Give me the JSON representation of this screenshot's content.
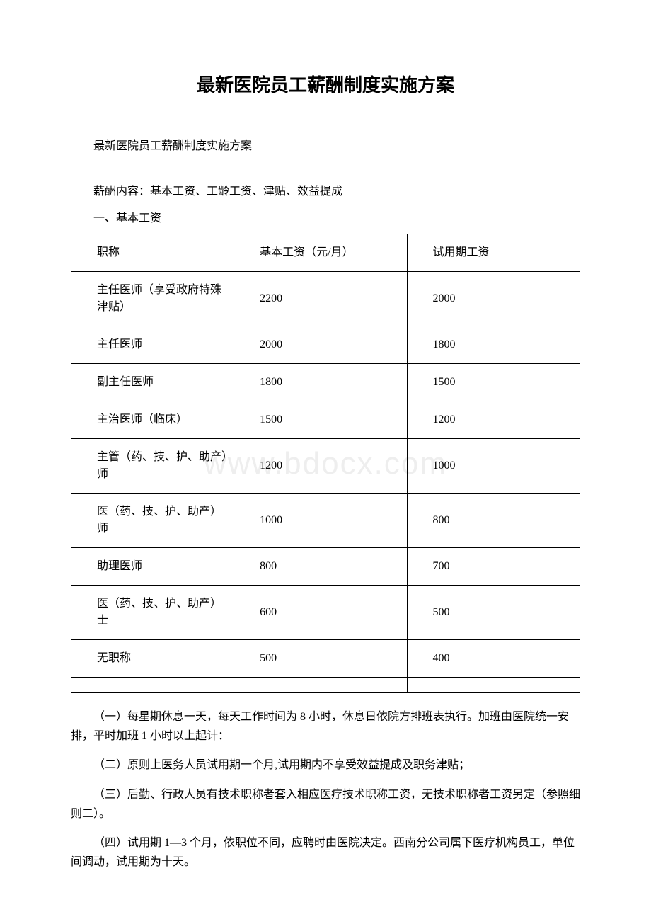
{
  "title": "最新医院员工薪酬制度实施方案",
  "subtitle": "最新医院员工薪酬制度实施方案",
  "content_line": "薪酬内容：基本工资、工龄工资、津贴、效益提成",
  "section1_heading": "一、基本工资",
  "watermark": "www.bdocx.com",
  "table": {
    "headers": {
      "col1": "职称",
      "col2": "基本工资（元/月）",
      "col3": "试用期工资"
    },
    "rows": [
      {
        "col1": "主任医师（享受政府特殊津贴）",
        "col2": "2200",
        "col3": "2000"
      },
      {
        "col1": "主任医师",
        "col2": "2000",
        "col3": "1800"
      },
      {
        "col1": "副主任医师",
        "col2": "1800",
        "col3": "1500"
      },
      {
        "col1": "主治医师（临床）",
        "col2": "1500",
        "col3": "1200"
      },
      {
        "col1": "主管（药、技、护、助产）师",
        "col2": "1200",
        "col3": "1000"
      },
      {
        "col1": "医（药、技、护、助产）师",
        "col2": "1000",
        "col3": "800"
      },
      {
        "col1": "助理医师",
        "col2": "800",
        "col3": "700"
      },
      {
        "col1": "医（药、技、护、助产）士",
        "col2": "600",
        "col3": "500"
      },
      {
        "col1": "无职称",
        "col2": "500",
        "col3": "400"
      }
    ]
  },
  "paragraphs": {
    "p1": "（一）每星期休息一天，每天工作时间为 8 小时，休息日依院方排班表执行。加班由医院统一安排，平时加班 1 小时以上起计：",
    "p2": "（二）原则上医务人员试用期一个月,试用期内不享受效益提成及职务津贴；",
    "p3": "（三）后勤、行政人员有技术职称者套入相应医疗技术职称工资，无技术职称者工资另定（参照细则二）。",
    "p4": "（四）试用期 1—3 个月，依职位不同，应聘时由医院决定。西南分公司属下医疗机构员工，单位间调动，试用期为十天。"
  }
}
